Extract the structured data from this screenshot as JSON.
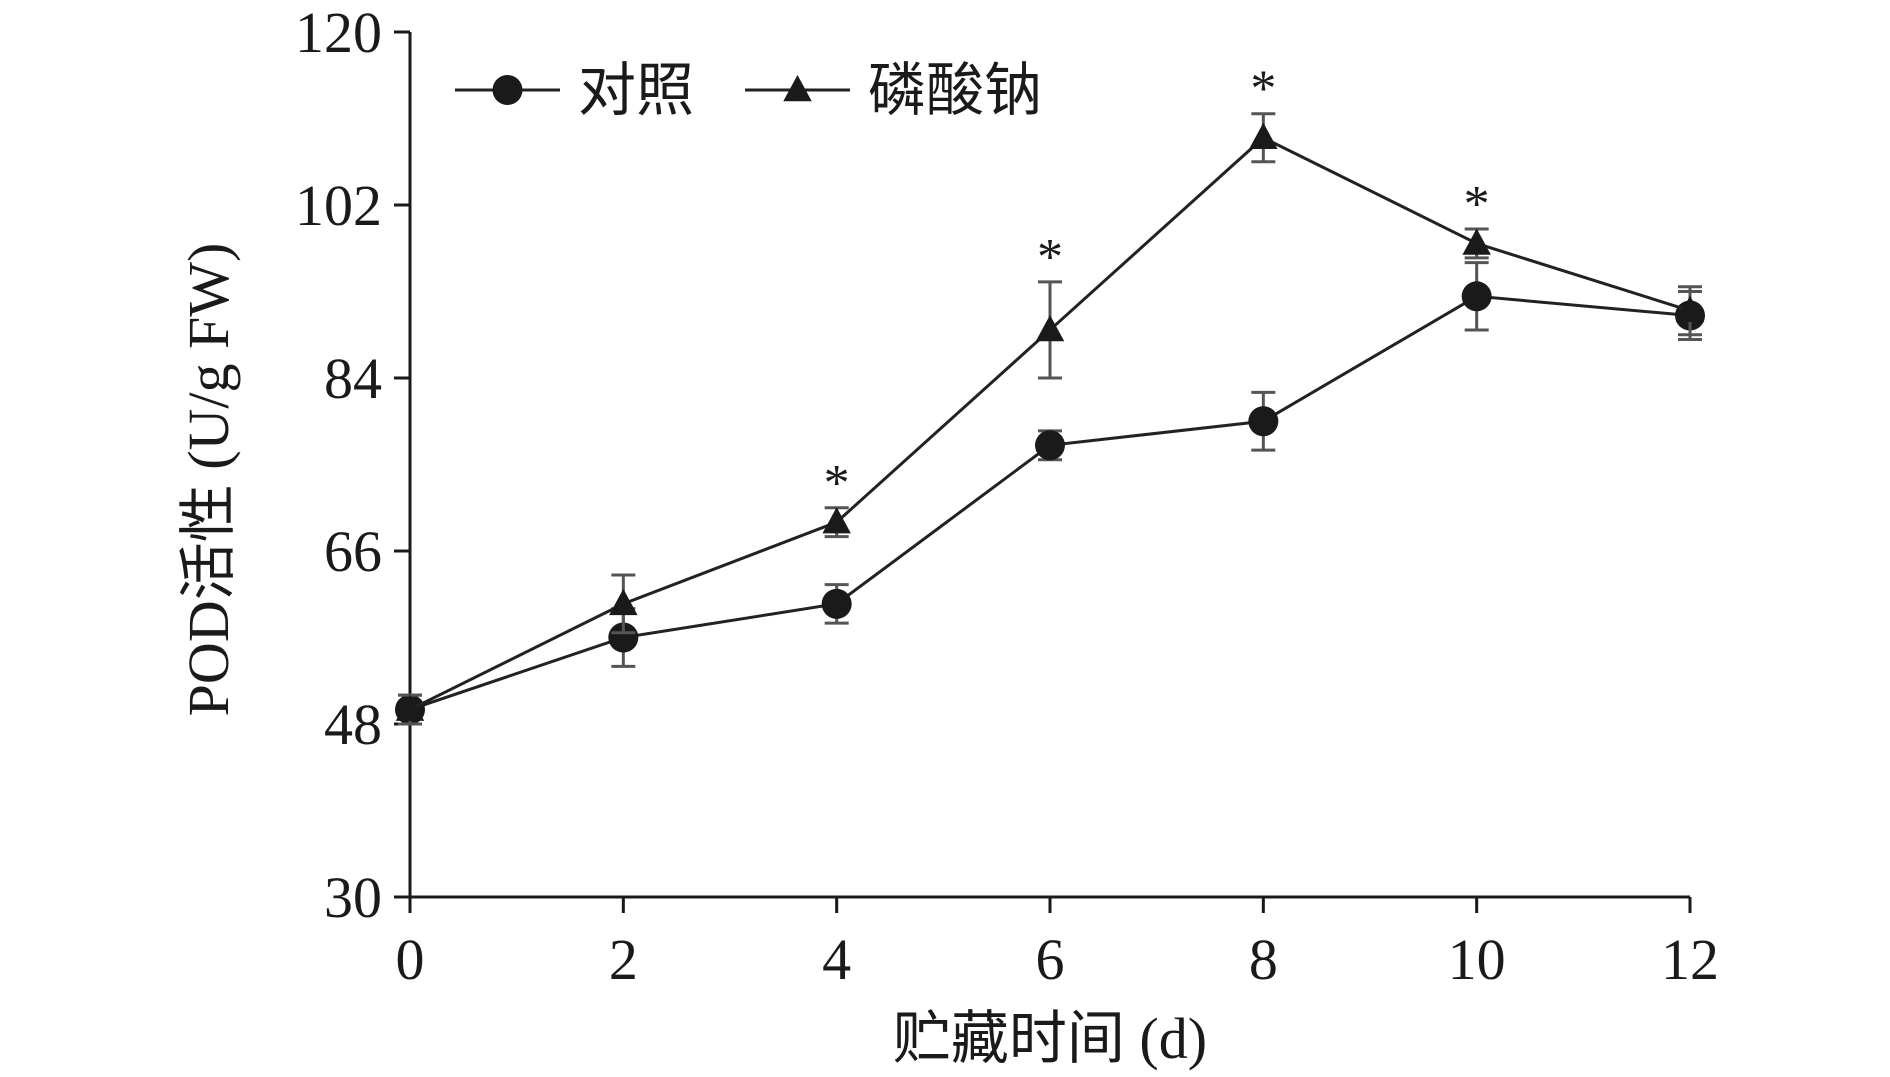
{
  "chart_data": {
    "type": "line",
    "title": "",
    "xlabel": "贮藏时间 (d)",
    "ylabel": "POD活性 (U/g FW)",
    "x": [
      0,
      2,
      4,
      6,
      8,
      10,
      12
    ],
    "xlim": [
      0,
      12
    ],
    "xticks": [
      "0",
      "2",
      "4",
      "6",
      "8",
      "10",
      "12"
    ],
    "ylim": [
      30,
      120
    ],
    "yticks": [
      "30",
      "48",
      "66",
      "84",
      "102",
      "120"
    ],
    "grid": false,
    "legend_position": "top-left",
    "series": [
      {
        "name": "对照",
        "marker": "circle",
        "values": [
          49.5,
          57,
          60.5,
          77,
          79.5,
          92.5,
          90.5
        ],
        "errors": [
          1.5,
          3,
          2,
          1.5,
          3,
          3.5,
          2.5
        ]
      },
      {
        "name": "磷酸钠",
        "marker": "triangle",
        "values": [
          49.5,
          60.5,
          69,
          89,
          109,
          98,
          91
        ],
        "errors": [
          1.5,
          3,
          1.5,
          5,
          2.5,
          1.5,
          2.5
        ]
      }
    ],
    "annotations": [
      {
        "x": 4,
        "text": "*"
      },
      {
        "x": 6,
        "text": "*"
      },
      {
        "x": 8,
        "text": "*"
      },
      {
        "x": 10,
        "text": "*"
      }
    ],
    "colors": {
      "line": "#222222",
      "marker": "#1a1a1a",
      "error_bar": "#555555",
      "axis": "#1a1a1a"
    }
  }
}
